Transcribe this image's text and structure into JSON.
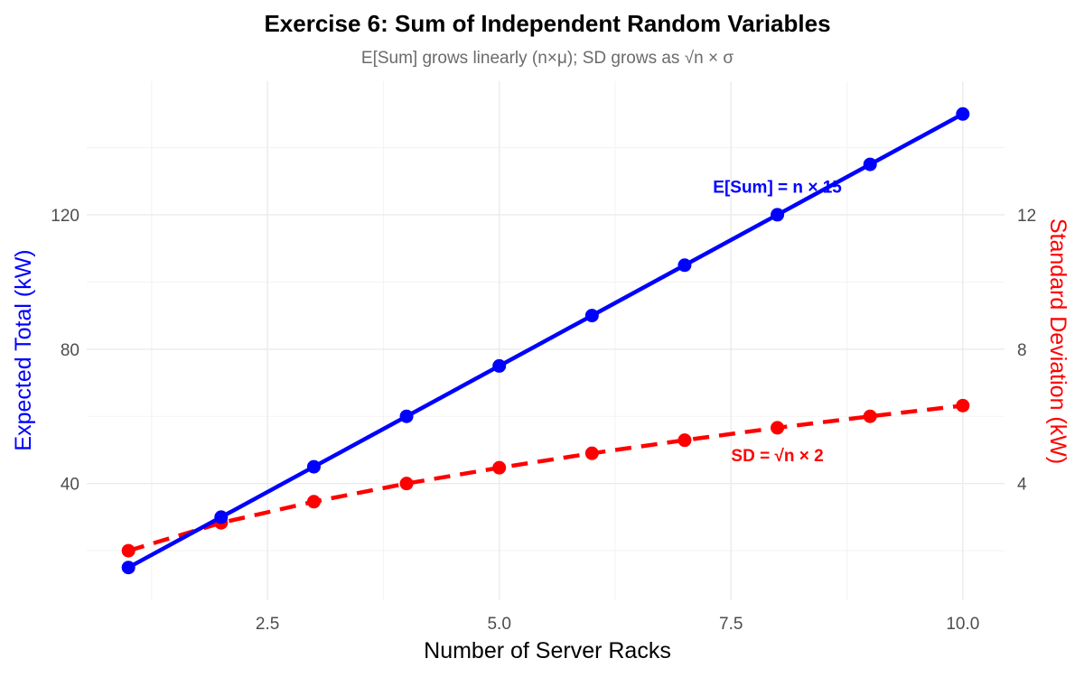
{
  "chart_data": {
    "type": "line",
    "title": "Exercise 6: Sum of Independent Random Variables",
    "subtitle": "E[Sum] grows linearly (n×μ); SD grows as √n × σ",
    "xlabel": "Number of Server Racks",
    "ylabel_left": "Expected Total (kW)",
    "ylabel_right": "Standard Deviation (kW)",
    "xlim": [
      0.55,
      10.45
    ],
    "ylim_left": [
      5.25,
      159.75
    ],
    "ylim_right": [
      0.525,
      15.975
    ],
    "x_ticks": [
      2.5,
      5.0,
      7.5,
      10.0
    ],
    "x_tick_labels": [
      "2.5",
      "5.0",
      "7.5",
      "10.0"
    ],
    "y_left_ticks": [
      40,
      80,
      120
    ],
    "y_left_tick_labels": [
      "40",
      "80",
      "120"
    ],
    "y_right_ticks": [
      4,
      8,
      12
    ],
    "y_right_tick_labels": [
      "4",
      "8",
      "12"
    ],
    "x": [
      1,
      2,
      3,
      4,
      5,
      6,
      7,
      8,
      9,
      10
    ],
    "series": [
      {
        "name": "E[Sum]",
        "axis": "left",
        "color": "#0000ff",
        "linestyle": "solid",
        "values": [
          15,
          30,
          45,
          60,
          75,
          90,
          105,
          120,
          135,
          150
        ]
      },
      {
        "name": "SD",
        "axis": "right",
        "color": "#ff0000",
        "linestyle": "dashed",
        "values": [
          2.0,
          2.83,
          3.46,
          4.0,
          4.47,
          4.9,
          5.29,
          5.66,
          6.0,
          6.32
        ]
      }
    ],
    "annotations": [
      {
        "text": "E[Sum] = n × 15",
        "x": 8.0,
        "y_left": 128.5,
        "color": "#0000ff"
      },
      {
        "text": "SD = √n × 2",
        "x": 8.0,
        "y_left": 48.5,
        "color": "#ff0000"
      }
    ]
  }
}
